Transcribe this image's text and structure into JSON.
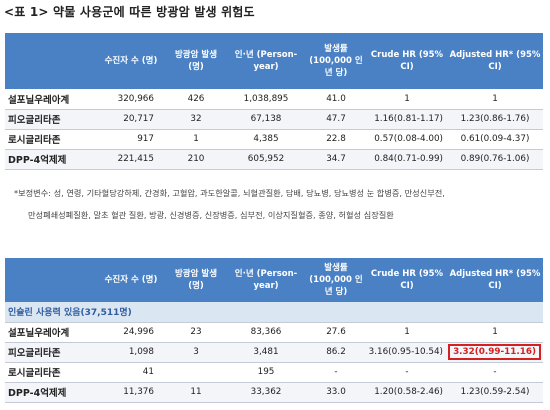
{
  "title": "<표 1> 약물 사용군에 따른 방광암 발생 위험도",
  "headers": {
    "subjects": "수진자 수 (명)",
    "events": "방광암 발생 (명)",
    "person_year": "인·년 (Person-year)",
    "rate": "발생률 (100,000 인년 당)",
    "crude_hr": "Crude HR (95% CI)",
    "adjusted_hr": "Adjusted HR* (95% CI)"
  },
  "table1": {
    "rows": [
      {
        "name": "설포닐우레아계",
        "subjects": "320,966",
        "events": "426",
        "person_year": "1,038,895",
        "rate": "41.0",
        "crude_hr": "1",
        "adjusted_hr": "1"
      },
      {
        "name": "피오글리타존",
        "subjects": "20,717",
        "events": "32",
        "person_year": "67,138",
        "rate": "47.7",
        "crude_hr": "1.16(0.81-1.17)",
        "adjusted_hr": "1.23(0.86-1.76)"
      },
      {
        "name": "로시글리타존",
        "subjects": "917",
        "events": "1",
        "person_year": "4,385",
        "rate": "22.8",
        "crude_hr": "0.57(0.08-4.00)",
        "adjusted_hr": "0.61(0.09-4.37)"
      },
      {
        "name": "DPP-4억제제",
        "subjects": "221,415",
        "events": "210",
        "person_year": "605,952",
        "rate": "34.7",
        "crude_hr": "0.84(0.71-0.99)",
        "adjusted_hr": "0.89(0.76-1.06)"
      }
    ]
  },
  "note_line1": "*보정변수: 성, 연령, 기타혈당강하제, 간경화, 고혈압, 과도한알콜, 뇌혈관질환, 담배, 당뇨병, 당뇨병성 눈 합병증, 만성신부전,",
  "note_line2": "만성폐쇄성폐질환, 말초 혈관 질환, 방광, 신경병증, 신장병증, 심부전, 이상지질혈증, 종양, 허혈성 심장질환",
  "table2": {
    "subheading": "인슐린 사용력 있음(37,511명)",
    "rows": [
      {
        "name": "설포닐우레아계",
        "subjects": "24,996",
        "events": "23",
        "person_year": "83,366",
        "rate": "27.6",
        "crude_hr": "1",
        "adjusted_hr": "1"
      },
      {
        "name": "피오글리타존",
        "subjects": "1,098",
        "events": "3",
        "person_year": "3,481",
        "rate": "86.2",
        "crude_hr": "3.16(0.95-10.54)",
        "adjusted_hr": "3.32(0.99-11.16)"
      },
      {
        "name": "로시글리타존",
        "subjects": "41",
        "events": "",
        "person_year": "195",
        "rate": "-",
        "crude_hr": "-",
        "adjusted_hr": "-"
      },
      {
        "name": "DPP-4억제제",
        "subjects": "11,376",
        "events": "11",
        "person_year": "33,362",
        "rate": "33.0",
        "crude_hr": "1.20(0.58-2.46)",
        "adjusted_hr": "1.23(0.59-2.54)"
      }
    ]
  },
  "colors": {
    "header_bg": "#4a81c4",
    "subheading_bg": "#dbe6f3",
    "highlight": "#d42020"
  }
}
